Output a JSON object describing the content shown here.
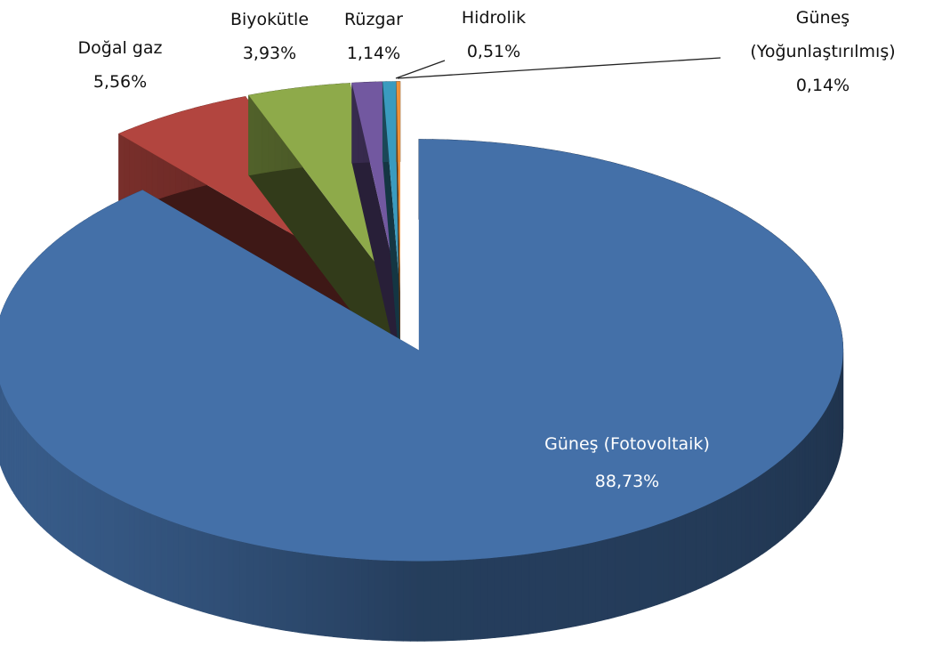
{
  "chart_data": {
    "type": "pie",
    "categories": [
      "Güneş (Fotovoltaik)",
      "Doğal gaz",
      "Biyokütle",
      "Rüzgar",
      "Hidrolik",
      "Güneş (Yoğunlaştırılmış)"
    ],
    "values": [
      88.73,
      5.56,
      3.93,
      1.14,
      0.51,
      0.14
    ],
    "value_labels": [
      "88,73%",
      "5,56%",
      "3,93%",
      "1,14%",
      "0,51%",
      "0,14%"
    ],
    "colors": [
      "#4470a8",
      "#b2453f",
      "#8eaa4a",
      "#7258a0",
      "#3a9bbf",
      "#f0923a"
    ]
  }
}
